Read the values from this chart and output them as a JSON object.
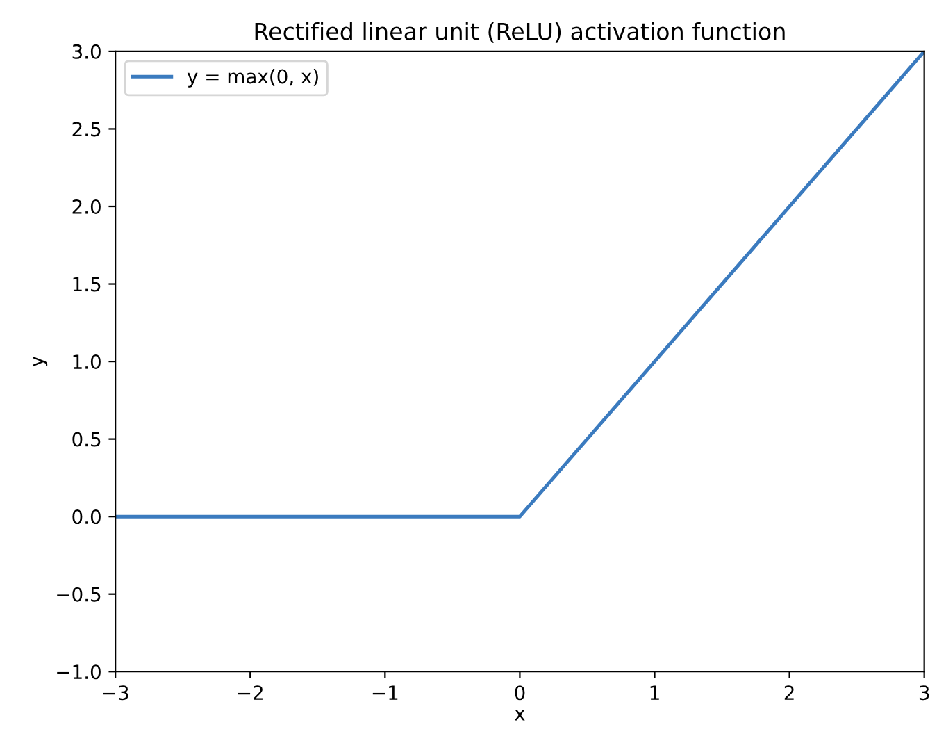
{
  "chart_data": {
    "type": "line",
    "title": "Rectified linear unit (ReLU) activation function",
    "xlabel": "x",
    "ylabel": "y",
    "x": [
      -3,
      0,
      3
    ],
    "series": [
      {
        "name": "y = max(0, x)",
        "color": "#3b7bbf",
        "values": [
          0,
          0,
          3
        ]
      }
    ],
    "xlim": [
      -3,
      3
    ],
    "ylim": [
      -1,
      3
    ],
    "xticks": [
      {
        "value": -3,
        "label": "−3"
      },
      {
        "value": -2,
        "label": "−2"
      },
      {
        "value": -1,
        "label": "−1"
      },
      0,
      1,
      2,
      3
    ],
    "yticks": [
      {
        "value": -1,
        "label": "−1.0"
      },
      {
        "value": -0.5,
        "label": "−0.5"
      },
      {
        "value": 0,
        "label": "0.0"
      },
      {
        "value": 0.5,
        "label": "0.5"
      },
      {
        "value": 1,
        "label": "1.0"
      },
      {
        "value": 1.5,
        "label": "1.5"
      },
      {
        "value": 2,
        "label": "2.0"
      },
      {
        "value": 2.5,
        "label": "2.5"
      },
      {
        "value": 3,
        "label": "3.0"
      }
    ],
    "legend": "top left",
    "grid": false,
    "marker": "none",
    "line_style": "solid"
  }
}
